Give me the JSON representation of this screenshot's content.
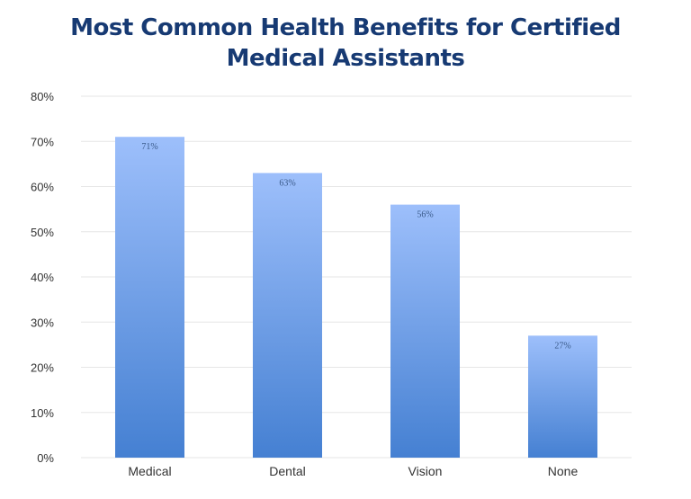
{
  "chart_data": {
    "type": "bar",
    "title_lines": [
      "Most Common Health Benefits for Certified",
      "Medical Assistants"
    ],
    "categories": [
      "Medical",
      "Dental",
      "Vision",
      "None"
    ],
    "values": [
      71,
      63,
      56,
      27
    ],
    "data_labels": [
      "71%",
      "63%",
      "56%",
      "27%"
    ],
    "xlabel": "",
    "ylabel": "",
    "ylim": [
      0,
      80
    ],
    "yticks": [
      "0%",
      "10%",
      "20%",
      "30%",
      "40%",
      "50%",
      "60%",
      "70%",
      "80%"
    ],
    "grid": true,
    "legend": "none",
    "colors": {
      "bar_top": "#9dbffb",
      "bar_bottom": "#4580d2",
      "title": "#173a73",
      "grid": "#e6e6e6",
      "text": "#333333"
    }
  }
}
